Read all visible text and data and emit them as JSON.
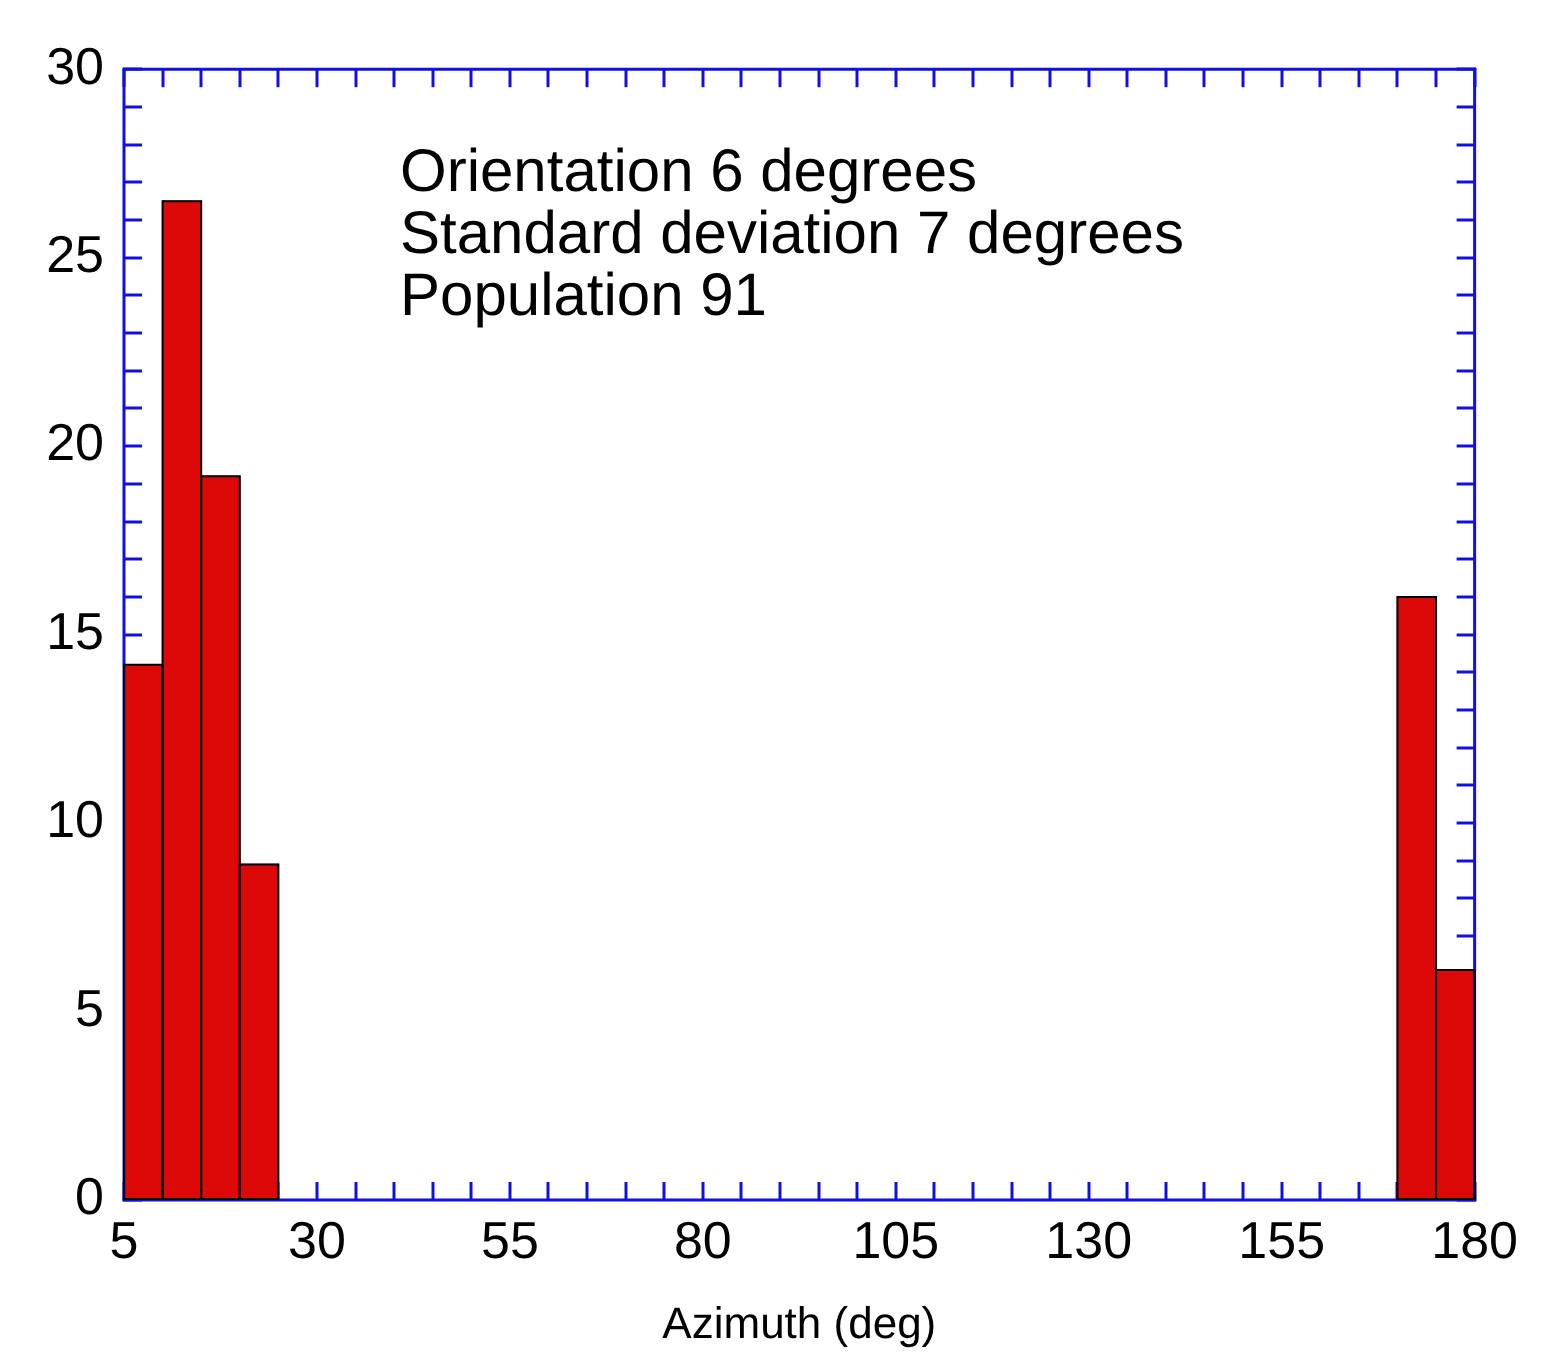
{
  "chart_data": {
    "type": "histogram",
    "xlabel": "Azimuth (deg)",
    "annotations": [
      "Orientation 6 degrees",
      "Standard deviation 7 degrees",
      "Population 91"
    ],
    "bins": [
      5,
      10,
      15,
      20,
      25,
      30,
      35,
      40,
      45,
      50,
      55,
      60,
      65,
      70,
      75,
      80,
      85,
      90,
      95,
      100,
      105,
      110,
      115,
      120,
      125,
      130,
      135,
      140,
      145,
      150,
      155,
      160,
      165,
      170,
      175,
      180
    ],
    "values": [
      14.2,
      26.5,
      19.2,
      8.9,
      0,
      0,
      0,
      0,
      0,
      0,
      0,
      0,
      0,
      0,
      0,
      0,
      0,
      0,
      0,
      0,
      0,
      0,
      0,
      0,
      0,
      0,
      0,
      0,
      0,
      0,
      0,
      0,
      0,
      16.0,
      6.1
    ],
    "color": "#dd0808",
    "xlim": [
      5,
      180
    ],
    "xticks": [
      5,
      {
        "value": 10,
        "label": null
      },
      {
        "value": 15,
        "label": null
      },
      {
        "value": 20,
        "label": null
      },
      {
        "value": 25,
        "label": null
      },
      30,
      {
        "value": 35,
        "label": null
      },
      {
        "value": 40,
        "label": null
      },
      {
        "value": 45,
        "label": null
      },
      {
        "value": 50,
        "label": null
      },
      55,
      {
        "value": 60,
        "label": null
      },
      {
        "value": 65,
        "label": null
      },
      {
        "value": 70,
        "label": null
      },
      {
        "value": 75,
        "label": null
      },
      80,
      {
        "value": 85,
        "label": null
      },
      {
        "value": 90,
        "label": null
      },
      {
        "value": 95,
        "label": null
      },
      {
        "value": 100,
        "label": null
      },
      105,
      {
        "value": 110,
        "label": null
      },
      {
        "value": 115,
        "label": null
      },
      {
        "value": 120,
        "label": null
      },
      {
        "value": 125,
        "label": null
      },
      130,
      {
        "value": 135,
        "label": null
      },
      {
        "value": 140,
        "label": null
      },
      {
        "value": 145,
        "label": null
      },
      {
        "value": 150,
        "label": null
      },
      155,
      {
        "value": 160,
        "label": null
      },
      {
        "value": 165,
        "label": null
      },
      {
        "value": 170,
        "label": null
      },
      {
        "value": 175,
        "label": null
      },
      180
    ],
    "ylim": [
      0,
      30
    ],
    "yticks": [
      0,
      {
        "value": 1,
        "label": null
      },
      {
        "value": 2,
        "label": null
      },
      {
        "value": 3,
        "label": null
      },
      {
        "value": 4,
        "label": null
      },
      5,
      {
        "value": 6,
        "label": null
      },
      {
        "value": 7,
        "label": null
      },
      {
        "value": 8,
        "label": null
      },
      {
        "value": 9,
        "label": null
      },
      10,
      {
        "value": 11,
        "label": null
      },
      {
        "value": 12,
        "label": null
      },
      {
        "value": 13,
        "label": null
      },
      {
        "value": 14,
        "label": null
      },
      15,
      {
        "value": 16,
        "label": null
      },
      {
        "value": 17,
        "label": null
      },
      {
        "value": 18,
        "label": null
      },
      {
        "value": 19,
        "label": null
      },
      20,
      {
        "value": 21,
        "label": null
      },
      {
        "value": 22,
        "label": null
      },
      {
        "value": 23,
        "label": null
      },
      {
        "value": 24,
        "label": null
      },
      25,
      {
        "value": 26,
        "label": null
      },
      {
        "value": 27,
        "label": null
      },
      {
        "value": 28,
        "label": null
      },
      {
        "value": 29,
        "label": null
      },
      30
    ],
    "grid": false,
    "legend": false
  }
}
